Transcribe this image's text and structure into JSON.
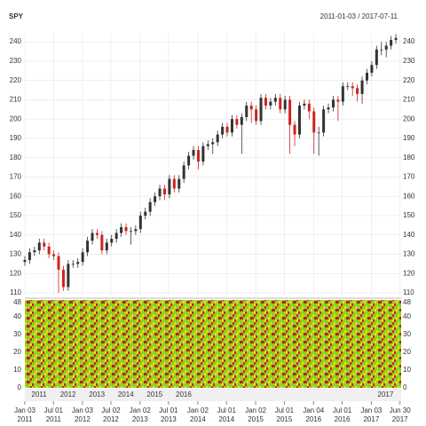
{
  "chart_data": {
    "type": "candlestick",
    "title": "SPY",
    "subtitle": "2011-01-03 / 2017-07-11",
    "x": [
      0,
      21,
      42,
      63,
      84,
      105,
      126,
      147,
      168,
      189,
      210,
      231,
      252,
      273,
      294,
      315,
      336,
      357,
      378,
      399,
      420,
      441,
      462,
      483,
      504,
      525,
      546,
      567,
      588,
      609,
      630,
      651,
      672,
      693,
      714,
      735,
      756,
      777,
      798,
      819,
      840,
      861,
      882,
      903,
      924,
      945,
      966,
      987,
      1008,
      1029,
      1050,
      1071,
      1092,
      1113,
      1134,
      1155,
      1176,
      1197,
      1218,
      1239,
      1260,
      1281,
      1302,
      1323,
      1344,
      1365,
      1386,
      1407,
      1428,
      1449,
      1470,
      1491,
      1512,
      1533,
      1554,
      1575,
      1596,
      1617
    ],
    "open": [
      126,
      127,
      131,
      132,
      136,
      134,
      130,
      129,
      122,
      113,
      125,
      125,
      126,
      131,
      137,
      141,
      140,
      132,
      136,
      138,
      141,
      144,
      142,
      142,
      143,
      150,
      152,
      157,
      160,
      164,
      161,
      169,
      164,
      169,
      176,
      181,
      184,
      178,
      186,
      187,
      188,
      192,
      196,
      193,
      200,
      197,
      201,
      207,
      205,
      199,
      211,
      207,
      209,
      211,
      205,
      210,
      197,
      192,
      207,
      208,
      204,
      193,
      193,
      205,
      206,
      210,
      209,
      217,
      217,
      216,
      213,
      220,
      224,
      228,
      236,
      236,
      238,
      241
    ],
    "high": [
      129,
      133,
      134,
      138,
      138,
      136,
      132,
      131,
      124,
      127,
      127,
      128,
      133,
      139,
      143,
      143,
      142,
      138,
      140,
      143,
      146,
      146,
      144,
      145,
      152,
      154,
      159,
      162,
      166,
      166,
      171,
      171,
      171,
      178,
      183,
      186,
      186,
      188,
      189,
      190,
      194,
      198,
      198,
      202,
      202,
      203,
      209,
      209,
      207,
      213,
      213,
      211,
      213,
      213,
      212,
      212,
      199,
      209,
      210,
      210,
      206,
      196,
      207,
      208,
      212,
      212,
      219,
      219,
      219,
      218,
      222,
      226,
      230,
      238,
      240,
      240,
      243,
      244
    ],
    "low": [
      124,
      125,
      129,
      130,
      132,
      128,
      127,
      110,
      111,
      111,
      123,
      123,
      124,
      129,
      135,
      138,
      130,
      130,
      134,
      136,
      139,
      140,
      135,
      140,
      141,
      148,
      150,
      155,
      158,
      158,
      159,
      162,
      162,
      167,
      174,
      179,
      174,
      176,
      184,
      182,
      186,
      190,
      191,
      191,
      195,
      182,
      199,
      198,
      197,
      197,
      205,
      205,
      207,
      203,
      203,
      182,
      186,
      190,
      205,
      200,
      182,
      181,
      191,
      203,
      204,
      199,
      207,
      215,
      212,
      209,
      208,
      218,
      222,
      226,
      233,
      232,
      236,
      239
    ],
    "close": [
      127,
      131,
      132,
      136,
      134,
      130,
      129,
      122,
      113,
      125,
      125,
      126,
      131,
      137,
      141,
      140,
      132,
      136,
      138,
      141,
      144,
      142,
      142,
      143,
      150,
      152,
      157,
      160,
      164,
      161,
      169,
      164,
      169,
      176,
      181,
      184,
      178,
      186,
      187,
      188,
      192,
      196,
      193,
      200,
      197,
      201,
      207,
      205,
      199,
      211,
      207,
      209,
      211,
      205,
      210,
      197,
      192,
      207,
      208,
      204,
      193,
      193,
      205,
      206,
      210,
      209,
      217,
      217,
      216,
      213,
      220,
      224,
      228,
      236,
      236,
      238,
      241,
      242
    ],
    "up_color": "#333333",
    "down_color": "#cc2222",
    "xlim": [
      0,
      1640
    ],
    "xticks": [
      {
        "value": 0,
        "label": "Jan 03",
        "year": "2011"
      },
      {
        "value": 125,
        "label": "Jul 01",
        "year": "2011"
      },
      {
        "value": 251,
        "label": "Jan 03",
        "year": "2012"
      },
      {
        "value": 375,
        "label": "Jul 02",
        "year": "2012"
      },
      {
        "value": 502,
        "label": "Jan 02",
        "year": "2013"
      },
      {
        "value": 626,
        "label": "Jul 01",
        "year": "2013"
      },
      {
        "value": 754,
        "label": "Jan 02",
        "year": "2014"
      },
      {
        "value": 879,
        "label": "Jul 01",
        "year": "2014"
      },
      {
        "value": 1006,
        "label": "Jan 02",
        "year": "2015"
      },
      {
        "value": 1131,
        "label": "Jul 01",
        "year": "2015"
      },
      {
        "value": 1258,
        "label": "Jan 04",
        "year": "2016"
      },
      {
        "value": 1383,
        "label": "Jul 01",
        "year": "2016"
      },
      {
        "value": 1510,
        "label": "Jan 03",
        "year": "2017"
      },
      {
        "value": 1635,
        "label": "Jun 30",
        "year": "2017"
      }
    ],
    "year_band": [
      {
        "value": 62,
        "label": "2011"
      },
      {
        "value": 188,
        "label": "2012"
      },
      {
        "value": 314,
        "label": "2013"
      },
      {
        "value": 440,
        "label": "2014"
      },
      {
        "value": 566,
        "label": "2015"
      },
      {
        "value": 692,
        "label": "2016"
      },
      {
        "value": 1572,
        "label": "2017"
      }
    ],
    "ylim": [
      108.6,
      244.2
    ],
    "yticks": [
      110,
      120,
      130,
      140,
      150,
      160,
      170,
      180,
      190,
      200,
      210,
      220,
      230,
      240
    ],
    "y2lim": [
      0,
      49.5
    ],
    "y2ticks": [
      0,
      10,
      20,
      30,
      40,
      48
    ],
    "grid": true
  }
}
